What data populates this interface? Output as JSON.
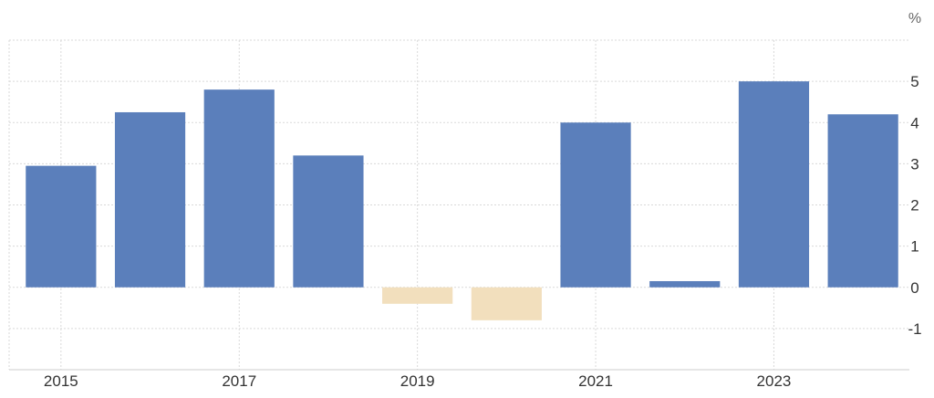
{
  "chart_data": {
    "type": "bar",
    "unit_label": "%",
    "x": [
      2015,
      2016,
      2017,
      2018,
      2019,
      2020,
      2021,
      2022,
      2023,
      2024
    ],
    "values": [
      2.95,
      4.25,
      4.8,
      3.2,
      -0.4,
      -0.8,
      4.0,
      0.15,
      5.0,
      4.2
    ],
    "x_tick_labels": [
      "2015",
      "2017",
      "2019",
      "2021",
      "2023"
    ],
    "y_tick_labels": [
      "5",
      "4",
      "3",
      "2",
      "1",
      "0",
      "-1"
    ],
    "ylim": [
      -2,
      6
    ],
    "grid": true,
    "colors": {
      "positive": "#5b7fbb",
      "negative": "#f2dfbd",
      "grid": "#d9d9d9"
    }
  }
}
